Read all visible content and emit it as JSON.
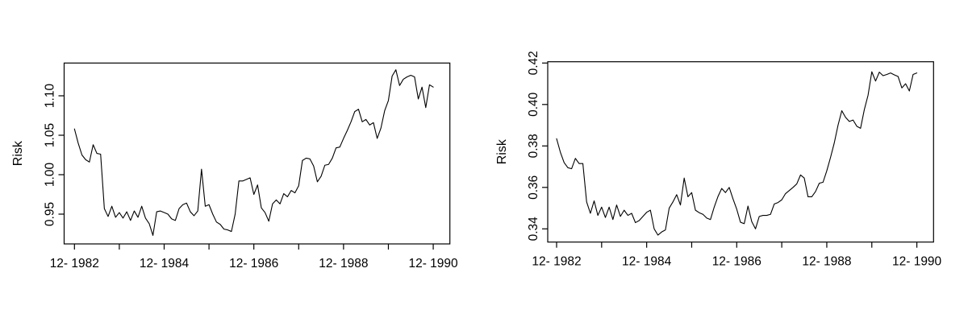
{
  "figure": {
    "background": "#ffffff",
    "line_color": "#000000",
    "axis_color": "#000000",
    "description": "Two side-by-side line plots of monthly portfolio Risk, Dec 1982 to Dec 1990"
  },
  "chart_data": [
    {
      "type": "line",
      "title": "",
      "xlabel": "",
      "ylabel": "Risk",
      "legend": "none",
      "grid": false,
      "x_start": "1982-12",
      "x_end": "1990-12",
      "frequency": "monthly",
      "xlim_months": [
        -3,
        100.5
      ],
      "ylim": [
        0.911,
        1.141
      ],
      "x_tick_months": [
        0,
        12,
        24,
        36,
        48,
        60,
        72,
        84,
        96
      ],
      "x_tick_labels": [
        "12- 1982",
        "",
        "12- 1984",
        "",
        "12- 1986",
        "",
        "12- 1988",
        "",
        "12- 1990"
      ],
      "y_ticks": [
        0.95,
        1.0,
        1.05,
        1.1
      ],
      "y_tick_labels": [
        "0.95",
        "1.00",
        "1.05",
        "1.10"
      ],
      "values": [
        1.058,
        1.04,
        1.025,
        1.019,
        1.016,
        1.038,
        1.027,
        1.026,
        0.957,
        0.947,
        0.96,
        0.946,
        0.952,
        0.945,
        0.953,
        0.942,
        0.954,
        0.946,
        0.96,
        0.945,
        0.938,
        0.923,
        0.953,
        0.954,
        0.952,
        0.95,
        0.944,
        0.942,
        0.957,
        0.962,
        0.964,
        0.953,
        0.948,
        0.954,
        1.007,
        0.96,
        0.962,
        0.95,
        0.94,
        0.937,
        0.931,
        0.93,
        0.928,
        0.95,
        0.992,
        0.992,
        0.994,
        0.996,
        0.975,
        0.987,
        0.958,
        0.952,
        0.941,
        0.963,
        0.968,
        0.963,
        0.976,
        0.972,
        0.98,
        0.977,
        0.986,
        1.018,
        1.021,
        1.02,
        1.011,
        0.991,
        0.998,
        1.012,
        1.013,
        1.021,
        1.034,
        1.035,
        1.046,
        1.056,
        1.067,
        1.08,
        1.083,
        1.067,
        1.07,
        1.063,
        1.066,
        1.046,
        1.059,
        1.081,
        1.094,
        1.125,
        1.133,
        1.113,
        1.121,
        1.124,
        1.126,
        1.124,
        1.096,
        1.111,
        1.085,
        1.114,
        1.111
      ]
    },
    {
      "type": "line",
      "title": "",
      "xlabel": "",
      "ylabel": "Risk",
      "legend": "none",
      "grid": false,
      "x_start": "1982-12",
      "x_end": "1990-12",
      "frequency": "monthly",
      "xlim_months": [
        -2.5,
        100.5
      ],
      "ylim": [
        0.3335,
        0.4205
      ],
      "x_tick_months": [
        0,
        12,
        24,
        36,
        48,
        60,
        72,
        84,
        96
      ],
      "x_tick_labels": [
        "12- 1982",
        "",
        "12- 1984",
        "",
        "12- 1986",
        "",
        "12- 1988",
        "",
        "12- 1990"
      ],
      "y_ticks": [
        0.34,
        0.36,
        0.38,
        0.4,
        0.42
      ],
      "y_tick_labels": [
        "0.34",
        "0.36",
        "0.38",
        "0.40",
        "0.42"
      ],
      "values": [
        0.3835,
        0.377,
        0.372,
        0.3695,
        0.369,
        0.374,
        0.3715,
        0.3715,
        0.353,
        0.3475,
        0.3535,
        0.3465,
        0.3505,
        0.3455,
        0.3505,
        0.3445,
        0.3515,
        0.346,
        0.349,
        0.3465,
        0.3475,
        0.343,
        0.344,
        0.346,
        0.348,
        0.349,
        0.34,
        0.337,
        0.3385,
        0.3395,
        0.35,
        0.353,
        0.3565,
        0.3515,
        0.3645,
        0.3555,
        0.3575,
        0.349,
        0.3478,
        0.347,
        0.3452,
        0.3445,
        0.3505,
        0.3556,
        0.3595,
        0.3575,
        0.36,
        0.3545,
        0.3495,
        0.3432,
        0.3425,
        0.351,
        0.3435,
        0.34,
        0.346,
        0.3465,
        0.3465,
        0.347,
        0.352,
        0.3527,
        0.354,
        0.357,
        0.3585,
        0.36,
        0.3617,
        0.366,
        0.3645,
        0.3555,
        0.3555,
        0.358,
        0.362,
        0.3625,
        0.368,
        0.3745,
        0.3815,
        0.39,
        0.397,
        0.3938,
        0.3918,
        0.3925,
        0.3895,
        0.3885,
        0.3975,
        0.4045,
        0.4158,
        0.4113,
        0.4156,
        0.4139,
        0.4145,
        0.4152,
        0.4143,
        0.4135,
        0.408,
        0.41,
        0.4065,
        0.4145,
        0.4152
      ]
    }
  ]
}
